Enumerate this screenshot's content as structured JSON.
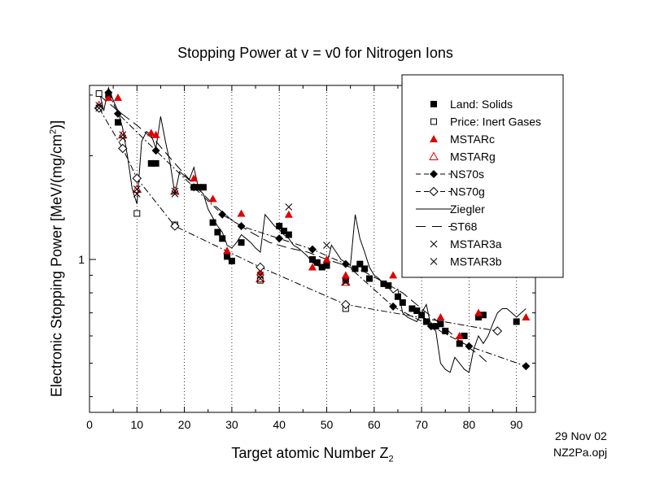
{
  "chart_data": {
    "type": "scatter",
    "title": "Stopping Power at v = v0 for Nitrogen Ions",
    "xlabel": "Target atomic Number Z",
    "xlabel_sub": "2",
    "ylabel": "Electronic Stopping Power [MeV/(mg/cm",
    "ylabel_sup": "2",
    "ylabel_end": ")]",
    "x_ticks": [
      0,
      10,
      20,
      30,
      40,
      50,
      60,
      70,
      80,
      90
    ],
    "y_ticks": [
      {
        "value": 1,
        "label": "1"
      }
    ],
    "xlim": [
      0,
      94
    ],
    "ylim": [
      0.36,
      3.2
    ],
    "y_scale": "log",
    "grid": "dotted vertical lines at major x ticks",
    "legend_position": "top-right",
    "series": [
      {
        "name": "Land: Solids",
        "marker": "filled-square",
        "color": "#000000",
        "points": [
          [
            4,
            3.0
          ],
          [
            6,
            2.5
          ],
          [
            13,
            1.9
          ],
          [
            14,
            1.9
          ],
          [
            22,
            1.62
          ],
          [
            23,
            1.62
          ],
          [
            24,
            1.62
          ],
          [
            26,
            1.28
          ],
          [
            27,
            1.2
          ],
          [
            28,
            1.15
          ],
          [
            29,
            1.02
          ],
          [
            30,
            0.99
          ],
          [
            32,
            1.12
          ],
          [
            40,
            1.25
          ],
          [
            41,
            1.21
          ],
          [
            42,
            1.18
          ],
          [
            47,
            1.0
          ],
          [
            48,
            0.98
          ],
          [
            49,
            0.95
          ],
          [
            50,
            0.96
          ],
          [
            54,
            0.87
          ],
          [
            56,
            0.94
          ],
          [
            57,
            0.97
          ],
          [
            58,
            0.94
          ],
          [
            59,
            0.88
          ],
          [
            62,
            0.85
          ],
          [
            63,
            0.84
          ],
          [
            65,
            0.78
          ],
          [
            66,
            0.75
          ],
          [
            68,
            0.72
          ],
          [
            69,
            0.71
          ],
          [
            70,
            0.69
          ],
          [
            71,
            0.66
          ],
          [
            73,
            0.64
          ],
          [
            74,
            0.65
          ],
          [
            75,
            0.62
          ],
          [
            78,
            0.57
          ],
          [
            79,
            0.6
          ],
          [
            82,
            0.68
          ],
          [
            83,
            0.69
          ],
          [
            90,
            0.66
          ]
        ]
      },
      {
        "name": "Price: Inert Gases",
        "marker": "open-square",
        "color": "#000000",
        "points": [
          [
            2,
            3.03
          ],
          [
            10,
            1.36
          ],
          [
            18,
            1.26
          ],
          [
            36,
            0.87
          ],
          [
            54,
            0.72
          ]
        ]
      },
      {
        "name": "MSTARc",
        "marker": "filled-triangle",
        "color": "#e00000",
        "points": [
          [
            4,
            2.95
          ],
          [
            6,
            2.95
          ],
          [
            13,
            2.33
          ],
          [
            14,
            2.3
          ],
          [
            22,
            1.72
          ],
          [
            26,
            1.5
          ],
          [
            29,
            1.06
          ],
          [
            32,
            1.36
          ],
          [
            36,
            0.92
          ],
          [
            42,
            1.35
          ],
          [
            47,
            0.95
          ],
          [
            50,
            1.0
          ],
          [
            54,
            0.9
          ],
          [
            64,
            0.9
          ],
          [
            74,
            0.68
          ],
          [
            78,
            0.6
          ],
          [
            82,
            0.7
          ],
          [
            92,
            0.68
          ]
        ]
      },
      {
        "name": "MSTARg",
        "marker": "open-triangle",
        "color": "#e00000",
        "points": [
          [
            2,
            2.8
          ],
          [
            7,
            2.3
          ],
          [
            10,
            1.6
          ],
          [
            18,
            1.58
          ],
          [
            36,
            0.88
          ],
          [
            54,
            0.86
          ]
        ]
      },
      {
        "name": "NS70s",
        "marker": "filled-diamond",
        "color": "#000000",
        "line": "dash-dot",
        "points": [
          [
            4,
            3.05
          ],
          [
            6,
            2.65
          ],
          [
            14,
            2.07
          ],
          [
            22,
            1.62
          ],
          [
            28,
            1.35
          ],
          [
            32,
            1.25
          ],
          [
            40,
            1.15
          ],
          [
            47,
            1.07
          ],
          [
            54,
            0.97
          ],
          [
            64,
            0.73
          ],
          [
            72,
            0.64
          ],
          [
            80,
            0.56
          ],
          [
            92,
            0.49
          ]
        ]
      },
      {
        "name": "NS70g",
        "marker": "open-diamond",
        "color": "#000000",
        "line": "dash-dot",
        "points": [
          [
            2,
            2.75
          ],
          [
            7,
            2.1
          ],
          [
            10,
            1.72
          ],
          [
            18,
            1.25
          ],
          [
            36,
            0.95
          ],
          [
            54,
            0.74
          ],
          [
            86,
            0.62
          ]
        ]
      },
      {
        "name": "Ziegler",
        "line": "solid",
        "color": "#000000",
        "points": [
          [
            2,
            3.1
          ],
          [
            3,
            2.7
          ],
          [
            4,
            3.15
          ],
          [
            5,
            2.9
          ],
          [
            6,
            2.7
          ],
          [
            7,
            2.4
          ],
          [
            8,
            2.0
          ],
          [
            9,
            1.6
          ],
          [
            10,
            1.45
          ],
          [
            11,
            2.2
          ],
          [
            12,
            2.35
          ],
          [
            13,
            2.3
          ],
          [
            14,
            2.1
          ],
          [
            15,
            2.6
          ],
          [
            16,
            2.2
          ],
          [
            17,
            1.9
          ],
          [
            18,
            1.55
          ],
          [
            19,
            1.8
          ],
          [
            20,
            1.75
          ],
          [
            21,
            1.7
          ],
          [
            22,
            1.85
          ],
          [
            23,
            1.6
          ],
          [
            24,
            1.55
          ],
          [
            25,
            1.4
          ],
          [
            26,
            1.32
          ],
          [
            27,
            1.25
          ],
          [
            28,
            1.2
          ],
          [
            29,
            1.1
          ],
          [
            30,
            1.08
          ],
          [
            31,
            1.12
          ],
          [
            32,
            1.18
          ],
          [
            33,
            1.15
          ],
          [
            34,
            1.12
          ],
          [
            35,
            1.08
          ],
          [
            36,
            1.05
          ],
          [
            37,
            1.35
          ],
          [
            38,
            1.3
          ],
          [
            39,
            1.25
          ],
          [
            40,
            1.22
          ],
          [
            41,
            1.18
          ],
          [
            42,
            1.15
          ],
          [
            43,
            1.1
          ],
          [
            44,
            1.08
          ],
          [
            45,
            1.05
          ],
          [
            46,
            1.02
          ],
          [
            47,
            0.98
          ],
          [
            48,
            0.96
          ],
          [
            49,
            0.95
          ],
          [
            50,
            0.96
          ],
          [
            51,
            1.1
          ],
          [
            52,
            1.05
          ],
          [
            53,
            1.0
          ],
          [
            54,
            0.98
          ],
          [
            55,
            0.96
          ],
          [
            56,
            1.35
          ],
          [
            57,
            1.15
          ],
          [
            58,
            1.05
          ],
          [
            59,
            0.95
          ],
          [
            60,
            0.9
          ],
          [
            61,
            0.88
          ],
          [
            62,
            0.85
          ],
          [
            63,
            0.83
          ],
          [
            64,
            0.8
          ],
          [
            65,
            0.82
          ],
          [
            66,
            0.7
          ],
          [
            67,
            0.68
          ],
          [
            68,
            0.67
          ],
          [
            69,
            0.66
          ],
          [
            70,
            0.7
          ],
          [
            71,
            0.74
          ],
          [
            72,
            0.64
          ],
          [
            73,
            0.62
          ],
          [
            74,
            0.5
          ],
          [
            75,
            0.48
          ],
          [
            76,
            0.47
          ],
          [
            77,
            0.52
          ],
          [
            78,
            0.5
          ],
          [
            79,
            0.48
          ],
          [
            80,
            0.47
          ],
          [
            81,
            0.55
          ],
          [
            82,
            0.6
          ],
          [
            83,
            0.57
          ],
          [
            84,
            0.6
          ],
          [
            85,
            0.65
          ],
          [
            86,
            0.7
          ],
          [
            87,
            0.72
          ],
          [
            88,
            0.72
          ],
          [
            89,
            0.7
          ],
          [
            90,
            0.68
          ],
          [
            91,
            0.7
          ],
          [
            92,
            0.72
          ]
        ]
      },
      {
        "name": "ST68",
        "line": "dashed",
        "color": "#000000",
        "points": [
          [
            2,
            3.0
          ],
          [
            6,
            2.7
          ],
          [
            10,
            2.45
          ],
          [
            14,
            2.2
          ],
          [
            18,
            1.9
          ],
          [
            22,
            1.65
          ],
          [
            26,
            1.45
          ],
          [
            30,
            1.3
          ],
          [
            34,
            1.2
          ],
          [
            38,
            1.12
          ],
          [
            42,
            1.08
          ],
          [
            46,
            1.05
          ],
          [
            50,
            1.0
          ],
          [
            54,
            0.96
          ],
          [
            58,
            0.92
          ],
          [
            62,
            0.86
          ],
          [
            66,
            0.8
          ],
          [
            70,
            0.72
          ],
          [
            74,
            0.65
          ],
          [
            78,
            0.58
          ],
          [
            82,
            0.53
          ],
          [
            84,
            0.5
          ]
        ]
      },
      {
        "name": "MSTAR3a",
        "marker": "x",
        "color": "#000000",
        "points": [
          [
            2,
            2.8
          ],
          [
            7,
            2.3
          ],
          [
            10,
            1.6
          ],
          [
            18,
            1.58
          ],
          [
            36,
            0.9
          ],
          [
            42,
            1.42
          ],
          [
            50,
            1.1
          ]
        ]
      },
      {
        "name": "MSTAR3b",
        "marker": "x",
        "color": "#000000",
        "points": [
          [
            2,
            2.75
          ],
          [
            7,
            2.25
          ],
          [
            10,
            1.55
          ],
          [
            18,
            1.55
          ],
          [
            36,
            0.88
          ],
          [
            54,
            0.86
          ]
        ]
      }
    ]
  },
  "annotations": {
    "date": "29 Nov 02",
    "file": "NZ2Pa.opj"
  }
}
